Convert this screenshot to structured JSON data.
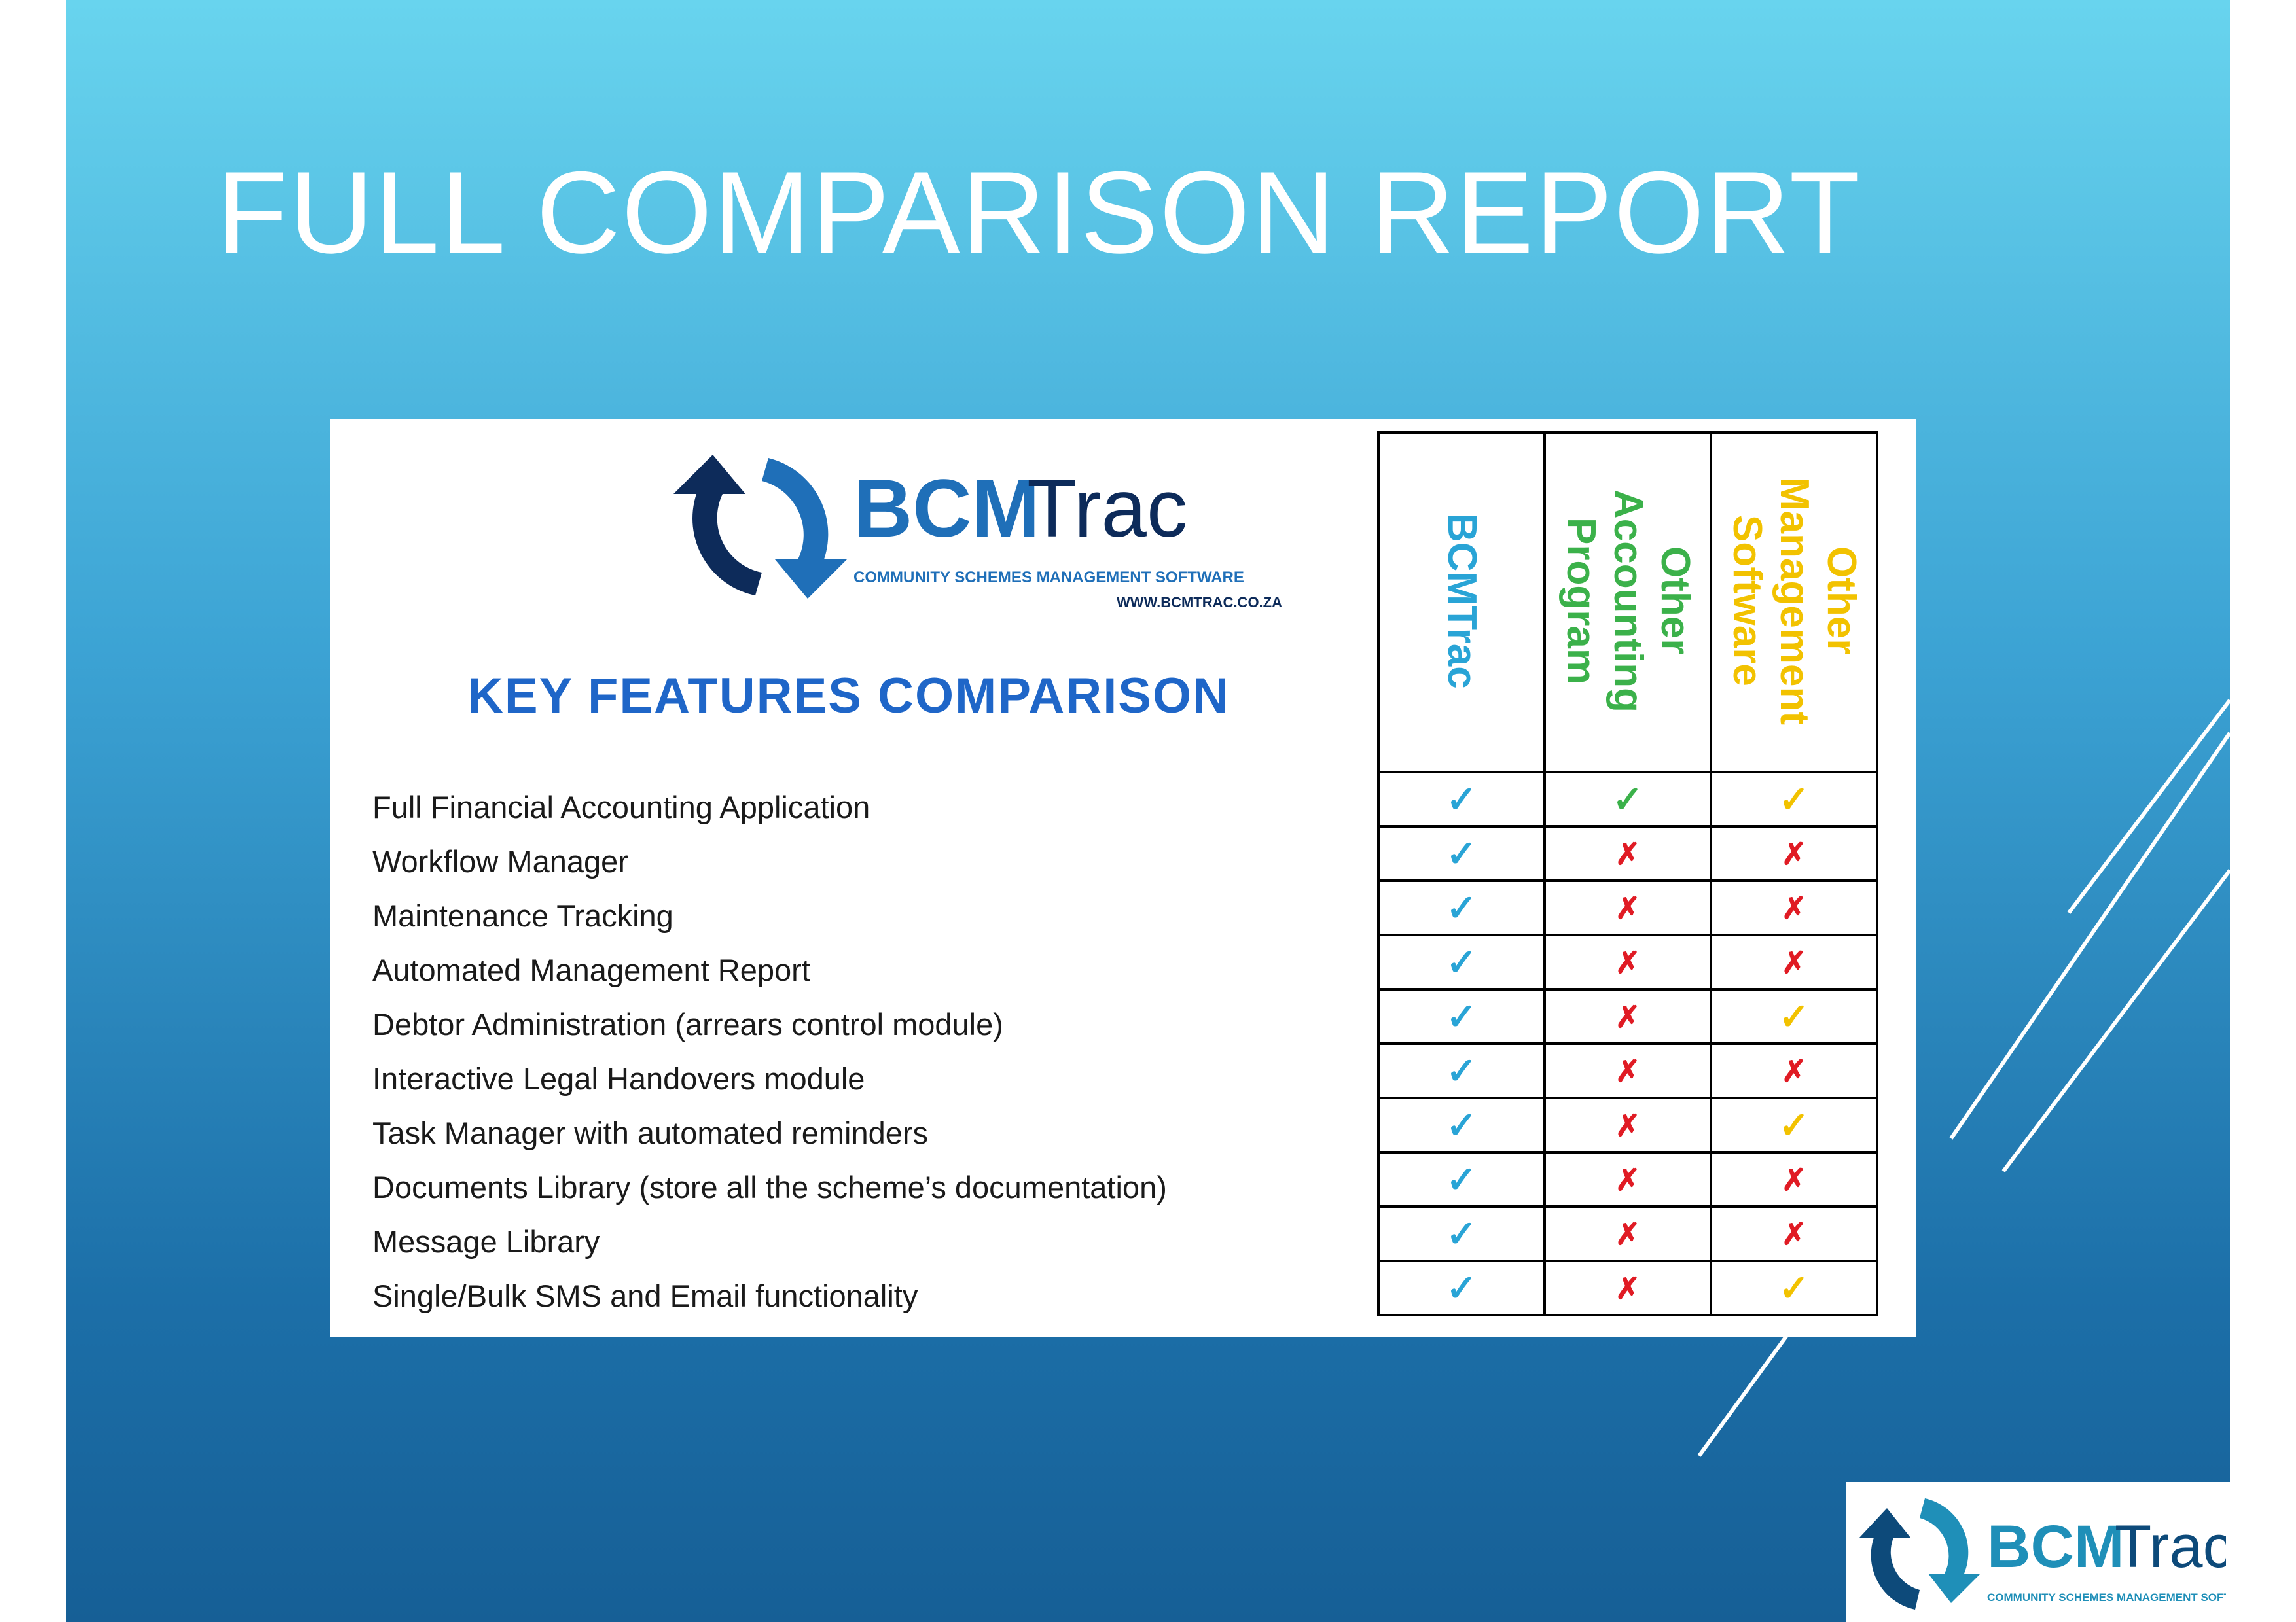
{
  "slide": {
    "title": "FULL COMPARISON REPORT"
  },
  "panel": {
    "logo": {
      "brand_bcm": "BCM",
      "brand_trac": "Trac",
      "tagline": "COMMUNITY SCHEMES MANAGEMENT SOFTWARE",
      "website": "WWW.BCMTRAC.CO.ZA"
    },
    "heading": "KEY FEATURES COMPARISON",
    "columns": [
      {
        "lines": [
          "BCMTrac"
        ],
        "color": "#29a4d6"
      },
      {
        "lines": [
          "Other",
          "Accounting",
          "Program"
        ],
        "color": "#3bb14a"
      },
      {
        "lines": [
          "Other",
          "Management",
          "Software"
        ],
        "color": "#f2c200"
      }
    ],
    "rows": [
      {
        "feature": "Full Financial Accounting Application",
        "marks": [
          "✓",
          "✓",
          "✓"
        ]
      },
      {
        "feature": "Workflow Manager",
        "marks": [
          "✓",
          "✗",
          "✗"
        ]
      },
      {
        "feature": "Maintenance Tracking",
        "marks": [
          "✓",
          "✗",
          "✗"
        ]
      },
      {
        "feature": "Automated Management Report",
        "marks": [
          "✓",
          "✗",
          "✗"
        ]
      },
      {
        "feature": "Debtor Administration (arrears control module)",
        "marks": [
          "✓",
          "✗",
          "✓"
        ]
      },
      {
        "feature": "Interactive Legal Handovers module",
        "marks": [
          "✓",
          "✗",
          "✗"
        ]
      },
      {
        "feature": "Task Manager with automated reminders",
        "marks": [
          "✓",
          "✗",
          "✓"
        ]
      },
      {
        "feature": "Documents Library (store all the scheme’s documentation)",
        "marks": [
          "✓",
          "✗",
          "✗"
        ]
      },
      {
        "feature": "Message Library",
        "marks": [
          "✓",
          "✗",
          "✗"
        ]
      },
      {
        "feature": "Single/Bulk SMS and Email functionality",
        "marks": [
          "✓",
          "✗",
          "✓"
        ]
      }
    ],
    "colors": {
      "check_bcmtrac": "#29a4d6",
      "check_accounting": "#3bb14a",
      "check_management": "#f2c200",
      "cross": "#e01b24",
      "heading": "#1f66c8"
    }
  },
  "corner_logo": {
    "brand_bcm": "BCM",
    "brand_trac": "Trac",
    "tagline": "COMMUNITY SCHEMES MANAGEMENT SOFTWARE"
  }
}
